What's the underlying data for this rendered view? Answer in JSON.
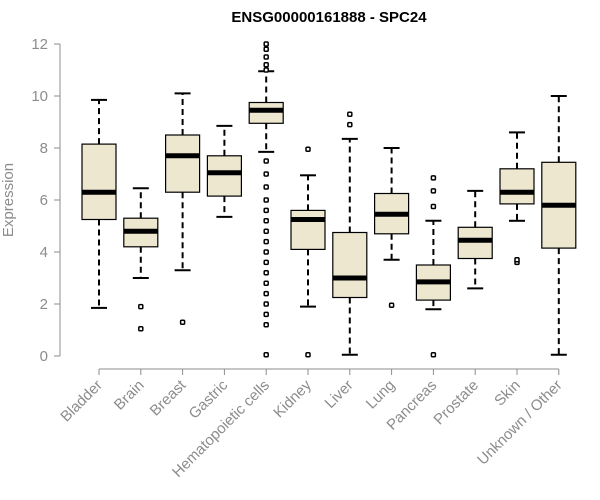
{
  "chart_data": {
    "type": "box",
    "title": "ENSG00000161888 - SPC24",
    "xlabel": "",
    "ylabel": "Expression",
    "ylim": [
      0,
      12
    ],
    "yticks": [
      0,
      2,
      4,
      6,
      8,
      10,
      12
    ],
    "colors": {
      "box_fill": "#ede7d0",
      "stroke": "#000000",
      "axis": "#8c8c8c"
    },
    "categories": [
      "Bladder",
      "Brain",
      "Breast",
      "Gastric",
      "Hematopoietic cells",
      "Kidney",
      "Liver",
      "Lung",
      "Pancreas",
      "Prostate",
      "Skin",
      "Unknown / Other"
    ],
    "boxes": [
      {
        "name": "Bladder",
        "min": 1.85,
        "q1": 5.25,
        "median": 6.3,
        "q3": 8.15,
        "max": 9.85,
        "outliers": []
      },
      {
        "name": "Brain",
        "min": 3.0,
        "q1": 4.2,
        "median": 4.8,
        "q3": 5.3,
        "max": 6.45,
        "outliers": [
          1.05,
          1.9
        ]
      },
      {
        "name": "Breast",
        "min": 3.3,
        "q1": 6.3,
        "median": 7.7,
        "q3": 8.5,
        "max": 10.1,
        "outliers": [
          1.3
        ]
      },
      {
        "name": "Gastric",
        "min": 5.35,
        "q1": 6.15,
        "median": 7.05,
        "q3": 7.7,
        "max": 8.85,
        "outliers": []
      },
      {
        "name": "Hematopoietic cells",
        "min": 7.85,
        "q1": 8.95,
        "median": 9.45,
        "q3": 9.75,
        "max": 10.95,
        "outliers": [
          11.0,
          11.2,
          11.5,
          11.8,
          12.0,
          7.5,
          7.0,
          6.5,
          6.0,
          5.6,
          5.2,
          4.8,
          4.4,
          4.0,
          3.6,
          3.2,
          2.8,
          2.4,
          2.0,
          1.6,
          1.2,
          0.05
        ]
      },
      {
        "name": "Kidney",
        "min": 1.9,
        "q1": 4.1,
        "median": 5.25,
        "q3": 5.6,
        "max": 6.95,
        "outliers": [
          7.95,
          0.05
        ]
      },
      {
        "name": "Liver",
        "min": 0.05,
        "q1": 2.25,
        "median": 3.0,
        "q3": 4.75,
        "max": 8.35,
        "outliers": [
          8.9,
          9.3
        ]
      },
      {
        "name": "Lung",
        "min": 3.7,
        "q1": 4.7,
        "median": 5.45,
        "q3": 6.25,
        "max": 8.0,
        "outliers": [
          1.95
        ]
      },
      {
        "name": "Pancreas",
        "min": 1.8,
        "q1": 2.15,
        "median": 2.85,
        "q3": 3.5,
        "max": 5.2,
        "outliers": [
          5.75,
          6.35,
          6.85,
          0.05
        ]
      },
      {
        "name": "Prostate",
        "min": 2.6,
        "q1": 3.75,
        "median": 4.45,
        "q3": 4.95,
        "max": 6.35,
        "outliers": []
      },
      {
        "name": "Skin",
        "min": 5.2,
        "q1": 5.85,
        "median": 6.3,
        "q3": 7.2,
        "max": 8.6,
        "outliers": [
          3.6,
          3.7
        ]
      },
      {
        "name": "Unknown / Other",
        "min": 0.05,
        "q1": 4.15,
        "median": 5.8,
        "q3": 7.45,
        "max": 10.0,
        "outliers": []
      }
    ]
  }
}
